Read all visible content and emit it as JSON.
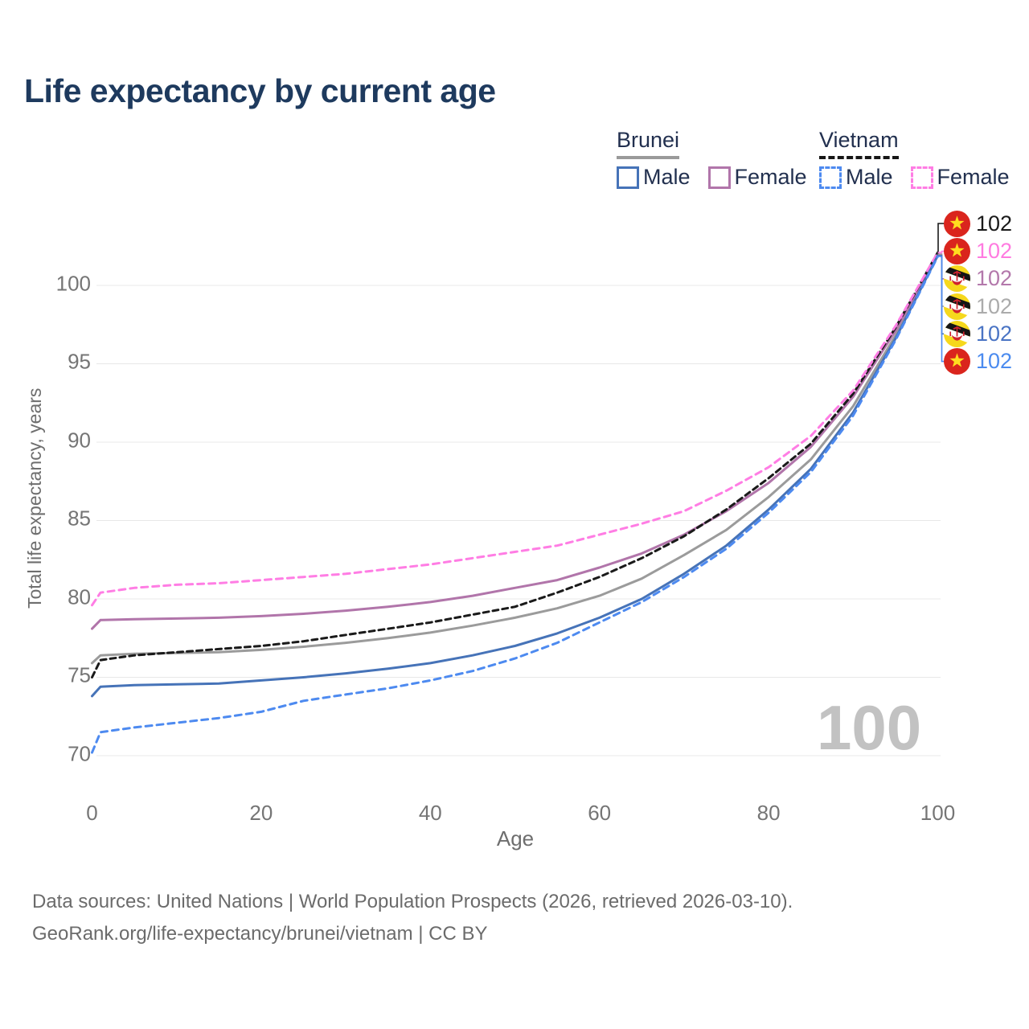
{
  "title": "Life expectancy by current age",
  "legend": {
    "groups": [
      {
        "label": "Brunei",
        "line_style": "solid",
        "underline_color": "#9a9a9a",
        "items": [
          {
            "label": "Male",
            "color": "#4673b8"
          },
          {
            "label": "Female",
            "color": "#b175aa"
          }
        ]
      },
      {
        "label": "Vietnam",
        "line_style": "dashed",
        "underline_color": "#161616",
        "items": [
          {
            "label": "Male",
            "color": "#4d8af0"
          },
          {
            "label": "Female",
            "color": "#ff7de4"
          }
        ]
      }
    ]
  },
  "axes": {
    "y": {
      "title": "Total life expectancy, years",
      "ticks": [
        "100",
        "95",
        "90",
        "85",
        "80",
        "75",
        "70"
      ]
    },
    "x": {
      "title": "Age",
      "ticks": [
        "0",
        "20",
        "40",
        "60",
        "80",
        "100"
      ]
    }
  },
  "watermark": "100",
  "end_labels": [
    {
      "series": "Vietnam",
      "flag": "vn",
      "value": "102",
      "color": "#1a1a1a"
    },
    {
      "series": "Vietnam Female",
      "flag": "vn",
      "value": "102",
      "color": "#ff7be0"
    },
    {
      "series": "Brunei Female",
      "flag": "bn",
      "value": "102",
      "color": "#b378ab"
    },
    {
      "series": "Brunei",
      "flag": "bn",
      "value": "102",
      "color": "#ababab"
    },
    {
      "series": "Brunei Male",
      "flag": "bn",
      "value": "102",
      "color": "#4a74c4"
    },
    {
      "series": "Vietnam Male",
      "flag": "vn",
      "value": "102",
      "color": "#4b8bef"
    }
  ],
  "footer": {
    "line1": "Data sources: United Nations | World Population Prospects (2026, retrieved 2026-03-10).",
    "line2": "GeoRank.org/life-expectancy/brunei/vietnam | CC BY"
  },
  "chart_data": {
    "type": "line",
    "title": "Life expectancy by current age",
    "xlabel": "Age",
    "ylabel": "Total life expectancy, years",
    "xlim": [
      0,
      100
    ],
    "ylim": [
      69.5,
      103
    ],
    "x_ticks": [
      0,
      20,
      40,
      60,
      80,
      100
    ],
    "y_ticks": [
      70,
      75,
      80,
      85,
      90,
      95,
      100
    ],
    "grid": "horizontal-only",
    "legend_position": "top-right",
    "ages": [
      0,
      1,
      5,
      10,
      15,
      20,
      25,
      30,
      35,
      40,
      45,
      50,
      55,
      60,
      65,
      70,
      75,
      80,
      85,
      90,
      95,
      100
    ],
    "series": [
      {
        "name": "Vietnam Female",
        "country": "Vietnam",
        "sex": "Female",
        "color": "#ff7de4",
        "dash": "dashed",
        "values": [
          79.6,
          80.4,
          80.7,
          80.9,
          81.0,
          81.2,
          81.4,
          81.6,
          81.9,
          82.2,
          82.6,
          83.0,
          83.4,
          84.1,
          84.8,
          85.6,
          86.9,
          88.4,
          90.4,
          93.3,
          97.4,
          102.1
        ]
      },
      {
        "name": "Vietnam",
        "country": "Vietnam",
        "sex": "Both",
        "color": "#1a1a1a",
        "dash": "dashed",
        "values": [
          75.0,
          76.1,
          76.4,
          76.6,
          76.8,
          77.0,
          77.3,
          77.7,
          78.1,
          78.5,
          79.0,
          79.5,
          80.4,
          81.4,
          82.6,
          84.0,
          85.7,
          87.7,
          89.9,
          93.1,
          97.3,
          102.1
        ]
      },
      {
        "name": "Brunei Female",
        "country": "Brunei",
        "sex": "Female",
        "color": "#b175aa",
        "dash": "solid",
        "values": [
          78.1,
          78.65,
          78.7,
          78.75,
          78.8,
          78.9,
          79.05,
          79.25,
          79.5,
          79.8,
          80.2,
          80.7,
          81.2,
          82.0,
          82.9,
          84.1,
          85.6,
          87.4,
          89.7,
          92.9,
          97.1,
          102.0
        ]
      },
      {
        "name": "Brunei",
        "country": "Brunei",
        "sex": "Both",
        "color": "#9b9b9b",
        "dash": "solid",
        "values": [
          75.9,
          76.4,
          76.5,
          76.55,
          76.6,
          76.75,
          76.95,
          77.2,
          77.5,
          77.85,
          78.3,
          78.8,
          79.4,
          80.2,
          81.3,
          82.8,
          84.4,
          86.5,
          88.9,
          92.3,
          96.8,
          101.95
        ]
      },
      {
        "name": "Brunei Male",
        "country": "Brunei",
        "sex": "Male",
        "color": "#4673b8",
        "dash": "solid",
        "values": [
          73.8,
          74.4,
          74.5,
          74.55,
          74.6,
          74.8,
          75.0,
          75.25,
          75.55,
          75.9,
          76.4,
          77.0,
          77.8,
          78.8,
          80.0,
          81.6,
          83.4,
          85.7,
          88.3,
          91.9,
          96.6,
          101.9
        ]
      },
      {
        "name": "Vietnam Male",
        "country": "Vietnam",
        "sex": "Male",
        "color": "#4d8af0",
        "dash": "dashed",
        "values": [
          70.2,
          71.5,
          71.8,
          72.1,
          72.4,
          72.8,
          73.5,
          73.9,
          74.3,
          74.8,
          75.4,
          76.2,
          77.2,
          78.5,
          79.8,
          81.4,
          83.2,
          85.5,
          88.1,
          91.7,
          96.5,
          101.85
        ]
      }
    ]
  }
}
